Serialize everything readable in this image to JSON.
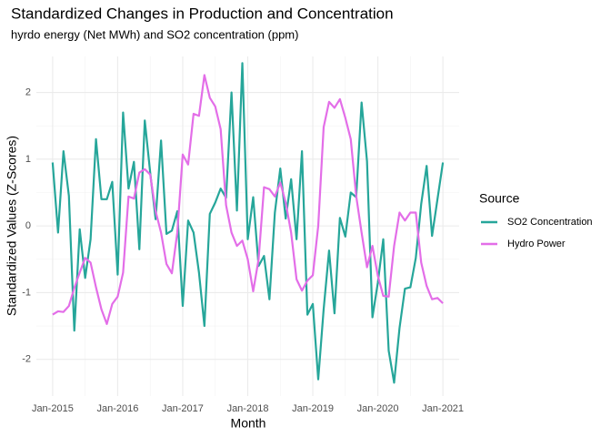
{
  "chart_data": {
    "type": "line",
    "title": "Standardized Changes in Production and Concentration",
    "subtitle": "hyrdo energy (Net MWh) and SO2 concentration (ppm)",
    "x_label": "Month",
    "y_label": "Standardized Values (Z-Scores)",
    "legend_title": "Source",
    "legend_position": "right",
    "grid": true,
    "x": [
      "2015-01",
      "2015-02",
      "2015-03",
      "2015-04",
      "2015-05",
      "2015-06",
      "2015-07",
      "2015-08",
      "2015-09",
      "2015-10",
      "2015-11",
      "2015-12",
      "2016-01",
      "2016-02",
      "2016-03",
      "2016-04",
      "2016-05",
      "2016-06",
      "2016-07",
      "2016-08",
      "2016-09",
      "2016-10",
      "2016-11",
      "2016-12",
      "2017-01",
      "2017-02",
      "2017-03",
      "2017-04",
      "2017-05",
      "2017-06",
      "2017-07",
      "2017-08",
      "2017-09",
      "2017-10",
      "2017-11",
      "2017-12",
      "2018-01",
      "2018-02",
      "2018-03",
      "2018-04",
      "2018-05",
      "2018-06",
      "2018-07",
      "2018-08",
      "2018-09",
      "2018-10",
      "2018-11",
      "2018-12",
      "2019-01",
      "2019-02",
      "2019-03",
      "2019-04",
      "2019-05",
      "2019-06",
      "2019-07",
      "2019-08",
      "2019-09",
      "2019-10",
      "2019-11",
      "2019-12",
      "2020-01",
      "2020-02",
      "2020-03",
      "2020-04",
      "2020-05",
      "2020-06",
      "2020-07",
      "2020-08",
      "2020-09",
      "2020-10",
      "2020-11",
      "2020-12",
      "2021-01"
    ],
    "xlim": [
      "2014-10",
      "2021-04"
    ],
    "xticks": [
      {
        "value": "2015-01",
        "label": "Jan-2015"
      },
      {
        "value": "2016-01",
        "label": "Jan-2016"
      },
      {
        "value": "2017-01",
        "label": "Jan-2017"
      },
      {
        "value": "2018-01",
        "label": "Jan-2018"
      },
      {
        "value": "2019-01",
        "label": "Jan-2019"
      },
      {
        "value": "2020-01",
        "label": "Jan-2020"
      },
      {
        "value": "2021-01",
        "label": "Jan-2021"
      }
    ],
    "ylim": [
      -2.55,
      2.54
    ],
    "yticks": [
      -2,
      -1,
      0,
      1,
      2
    ],
    "series": [
      {
        "name": "SO2 Concentration",
        "color": "#26a69a",
        "values": [
          0.95,
          -0.1,
          1.12,
          0.45,
          -1.57,
          -0.05,
          -0.78,
          -0.2,
          1.3,
          0.4,
          0.4,
          0.66,
          -0.73,
          1.7,
          0.56,
          0.96,
          -0.35,
          1.58,
          0.8,
          0.1,
          1.28,
          -0.12,
          -0.07,
          0.22,
          -1.2,
          0.08,
          -0.1,
          -0.7,
          -1.5,
          0.18,
          0.35,
          0.56,
          0.42,
          2.0,
          0.23,
          2.44,
          -0.2,
          0.43,
          -0.6,
          -0.45,
          -1.1,
          0.2,
          0.86,
          0.11,
          0.7,
          -0.2,
          1.12,
          -1.33,
          -1.17,
          -2.3,
          -1.25,
          -0.37,
          -1.31,
          0.12,
          -0.16,
          0.5,
          0.43,
          1.85,
          0.97,
          -1.37,
          -0.85,
          -0.2,
          -1.87,
          -2.35,
          -1.53,
          -0.94,
          -0.92,
          -0.48,
          0.33,
          0.9,
          -0.15,
          0.4,
          0.95
        ]
      },
      {
        "name": "Hydro Power",
        "color": "#e36ee8",
        "values": [
          -1.33,
          -1.28,
          -1.29,
          -1.2,
          -0.93,
          -0.7,
          -0.48,
          -0.55,
          -0.92,
          -1.25,
          -1.47,
          -1.17,
          -1.06,
          -0.7,
          0.44,
          0.41,
          0.8,
          0.85,
          0.77,
          0.22,
          -0.1,
          -0.57,
          -0.71,
          -0.1,
          1.07,
          0.92,
          1.68,
          1.65,
          2.26,
          1.92,
          1.79,
          1.45,
          0.31,
          -0.1,
          -0.3,
          -0.22,
          -0.5,
          -0.98,
          -0.5,
          0.58,
          0.55,
          0.44,
          0.65,
          0.35,
          -0.1,
          -0.8,
          -0.97,
          -0.82,
          -0.74,
          0,
          1.48,
          1.86,
          1.77,
          1.9,
          1.62,
          1.3,
          0.45,
          -0.1,
          -0.62,
          -0.3,
          -0.75,
          -1.05,
          -1.06,
          -0.3,
          0.2,
          0.08,
          0.2,
          0.2,
          -0.55,
          -0.9,
          -1.1,
          -1.08,
          -1.16
        ]
      }
    ]
  }
}
